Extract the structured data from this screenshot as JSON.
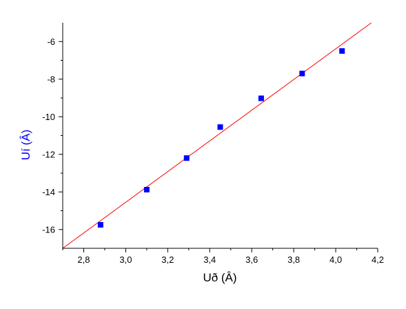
{
  "chart_data": {
    "type": "scatter",
    "xlabel": "Uð (Â)",
    "ylabel": "Uí (Â)",
    "xlim": [
      2.7,
      4.2
    ],
    "ylim": [
      -17,
      -5
    ],
    "x_ticks": [
      2.8,
      3.0,
      3.2,
      3.4,
      3.6,
      3.8,
      4.0,
      4.2
    ],
    "x_tick_labels": [
      "2,8",
      "3,0",
      "3,2",
      "3,4",
      "3,6",
      "3,8",
      "4,0",
      "4,2"
    ],
    "y_ticks": [
      -16,
      -14,
      -12,
      -10,
      -8,
      -6
    ],
    "y_tick_labels": [
      "-16",
      "-14",
      "-12",
      "-10",
      "-8",
      "-6"
    ],
    "grid": false,
    "series": [
      {
        "x": [
          2.88,
          3.1,
          3.29,
          3.45,
          3.645,
          3.84,
          4.03
        ],
        "y": [
          -15.75,
          -13.88,
          -12.2,
          -10.55,
          -9.02,
          -7.7,
          -6.5
        ],
        "color": "#0000ff",
        "marker": "square"
      }
    ],
    "fit_line": {
      "x": [
        2.7,
        4.17
      ],
      "y": [
        -17.0,
        -5.0
      ],
      "color": "#ff0000"
    }
  }
}
